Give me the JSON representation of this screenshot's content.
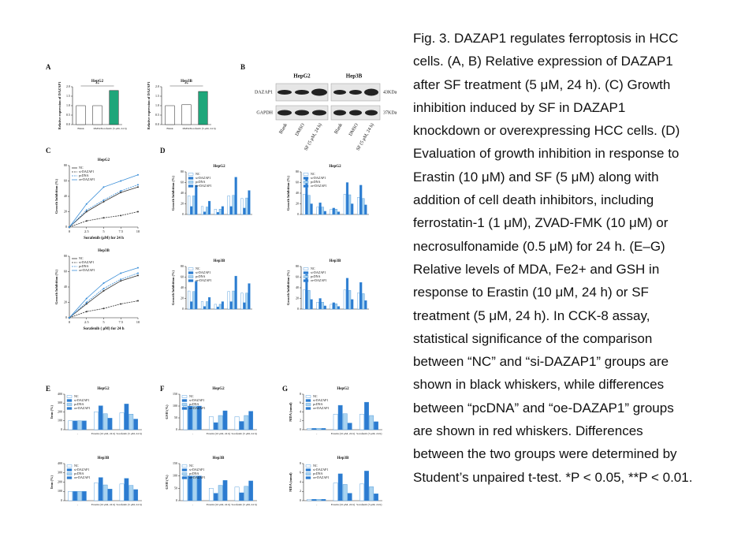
{
  "caption": {
    "lines": [
      "Fig. 3. DAZAP1 regulates ferroptosis in HCC",
      "cells. (A, B) Relative expression of DAZAP1",
      "after SF treatment (5 μM, 24 h). (C) Growth",
      "inhibition induced by SF in DAZAP1",
      "knockdown or overexpressing HCC cells. (D)",
      "Evaluation of growth inhibition in response to",
      "Erastin (10 μM) and SF (5 μM) along with",
      "addition of cell death inhibitors, including",
      "ferrostatin-1 (1 μM), ZVAD-FMK (10 μM) or",
      "necrosulfonamide (0.5 μM) for 24 h. (E–G)",
      "Relative levels of MDA, Fe2+ and GSH in",
      "response to Erastin (10 μM, 24 h) or SF",
      "treatment (5 μM, 24 h). In CCK-8 assay,",
      "statistical significance of the comparison",
      "between “NC” and “si-DAZAP1” groups are",
      "shown in black whiskers, while differences",
      "between “pcDNA” and “oe-DAZAP1” groups",
      "are shown in red whiskers. Differences",
      "between the two groups were determined by",
      "Student’s unpaired t-test. *P < 0.05, **P < 0.01."
    ]
  },
  "figure": {
    "panel_labels": [
      "A",
      "B",
      "C",
      "D",
      "E",
      "F",
      "G"
    ],
    "blot": {
      "cell_lines": [
        "HepG2",
        "Hep3B"
      ],
      "proteins": [
        "DAZAP1",
        "GAPDH"
      ],
      "sizes": [
        "43KDa",
        "37KDa"
      ],
      "lanes": [
        "Blank",
        "DMSO",
        "SF (5 μM, 24 h)"
      ]
    },
    "charts": [
      {
        "type": "bar",
        "title": "HepG2",
        "ylabel": "Relative expression of DAZAP1",
        "annotation": "**",
        "categories": [
          "Blank",
          "DMSO",
          "Sorafenib (5 μM, 24 h)"
        ],
        "values": [
          1.0,
          1.0,
          1.8
        ],
        "colors": [
          "#ffffff",
          "#ffffff",
          "#1fa67a"
        ],
        "ylim": [
          0,
          2
        ],
        "yticks": [
          {
            "value": 0,
            "label": "0.0"
          },
          {
            "value": 0.5,
            "label": "0.5"
          },
          {
            "value": 1,
            "label": "1.0"
          },
          {
            "value": 1.5,
            "label": "1.5"
          },
          {
            "value": 2,
            "label": "2.0"
          }
        ]
      },
      {
        "type": "bar",
        "title": "Hep3B",
        "ylabel": "Relative expression of DAZAP1",
        "annotation": "**",
        "categories": [
          "Blank",
          "DMSO",
          "Sorafenib (5 μM, 24 h)"
        ],
        "values": [
          1.0,
          1.05,
          1.75
        ],
        "colors": [
          "#ffffff",
          "#ffffff",
          "#1fa67a"
        ],
        "ylim": [
          0,
          2
        ],
        "yticks": [
          {
            "value": 0,
            "label": "0.0"
          },
          {
            "value": 0.5,
            "label": "0.5"
          },
          {
            "value": 1,
            "label": "1.0"
          },
          {
            "value": 1.5,
            "label": "1.5"
          },
          {
            "value": 2,
            "label": "2.0"
          }
        ]
      },
      {
        "type": "line",
        "title": "HepG2",
        "xlabel": "Sorafenib (μM) for 24 h",
        "ylabel": "Growth Inhibition (%)",
        "x": [
          0,
          2.5,
          5,
          7.5,
          10
        ],
        "xlim": [
          0,
          10
        ],
        "xticks": [
          0,
          2.5,
          5,
          7.5,
          10
        ],
        "ylim": [
          0,
          80
        ],
        "yticks": [
          0,
          20,
          40,
          60,
          80
        ],
        "series": [
          {
            "name": "NC",
            "color": "#333333",
            "dashed": false,
            "values": [
              0,
              20,
              33,
              45,
              52
            ]
          },
          {
            "name": "si-DAZAP1",
            "color": "#333333",
            "dashed": true,
            "values": [
              0,
              8,
              12,
              15,
              20
            ]
          },
          {
            "name": "pcDNA",
            "color": "#3c8fd8",
            "dashed": true,
            "values": [
              0,
              22,
              35,
              47,
              55
            ]
          },
          {
            "name": "oe-DAZAP1",
            "color": "#3c8fd8",
            "dashed": false,
            "values": [
              0,
              30,
              52,
              60,
              68
            ]
          }
        ]
      },
      {
        "type": "line",
        "title": "Hep3B",
        "xlabel": "Sorafenib ( μM) for 24 h",
        "ylabel": "Growth Inhibition (%)",
        "x": [
          0,
          2.5,
          5,
          7.5,
          10
        ],
        "xlim": [
          0,
          10
        ],
        "xticks": [
          0,
          2.5,
          5,
          7.5,
          10
        ],
        "ylim": [
          0,
          80
        ],
        "yticks": [
          0,
          20,
          40,
          60,
          80
        ],
        "series": [
          {
            "name": "NC",
            "color": "#333333",
            "dashed": false,
            "values": [
              0,
              18,
              35,
              48,
              55
            ]
          },
          {
            "name": "si-DAZAP1",
            "color": "#333333",
            "dashed": true,
            "values": [
              0,
              8,
              12,
              18,
              22
            ]
          },
          {
            "name": "pcDNA",
            "color": "#3c8fd8",
            "dashed": true,
            "values": [
              0,
              20,
              38,
              50,
              58
            ]
          },
          {
            "name": "oe-DAZAP1",
            "color": "#3c8fd8",
            "dashed": false,
            "values": [
              0,
              25,
              45,
              58,
              65
            ]
          }
        ]
      },
      {
        "type": "bar",
        "title": "HepG2",
        "ylabel": "Growth Inhibition (%)",
        "categories": [
          null,
          null,
          null,
          null,
          null
        ],
        "ylim": [
          0,
          80
        ],
        "yticks": [
          0,
          20,
          40,
          60,
          80
        ],
        "series": [
          {
            "name": "NC",
            "color": "#ffffff",
            "values": [
              35,
              15,
              10,
              35,
              30
            ]
          },
          {
            "name": "si-DAZAP1",
            "color": "#2c7bd0",
            "values": [
              15,
              5,
              4,
              15,
              12
            ]
          },
          {
            "name": "pcDNA",
            "color": "#a9d3f0",
            "values": [
              35,
              14,
              10,
              36,
              31
            ]
          },
          {
            "name": "oe-DAZAP1",
            "color": "#2c7bd0",
            "values": [
              55,
              25,
              15,
              70,
              45
            ]
          }
        ]
      },
      {
        "type": "bar",
        "title": "HepG2",
        "ylabel": "Growth Inhibition (%)",
        "categories": [
          null,
          null,
          null,
          null,
          null
        ],
        "ylim": [
          0,
          80
        ],
        "yticks": [
          0,
          20,
          40,
          60,
          80
        ],
        "series": [
          {
            "name": "NC",
            "color": "#ffffff",
            "values": [
              38,
              14,
              10,
              38,
              32
            ]
          },
          {
            "name": "si-DAZAP1",
            "color": "#2c7bd0",
            "values": [
              70,
              22,
              12,
              60,
              55
            ]
          },
          {
            "name": "pcDNA",
            "color": "#a9d3f0",
            "values": [
              36,
              14,
              10,
              37,
              30
            ]
          },
          {
            "name": "oe-DAZAP1",
            "color": "#2c7bd0",
            "values": [
              20,
              6,
              5,
              20,
              18
            ]
          }
        ]
      },
      {
        "type": "bar",
        "title": "Hep3B",
        "ylabel": "Growth Inhibition (%)",
        "categories": [
          null,
          null,
          null,
          null,
          null
        ],
        "ylim": [
          0,
          80
        ],
        "yticks": [
          0,
          20,
          40,
          60,
          80
        ],
        "series": [
          {
            "name": "NC",
            "color": "#ffffff",
            "values": [
              34,
              14,
              9,
              33,
              30
            ]
          },
          {
            "name": "si-DAZAP1",
            "color": "#2c7bd0",
            "values": [
              14,
              5,
              4,
              14,
              12
            ]
          },
          {
            "name": "pcDNA",
            "color": "#a9d3f0",
            "values": [
              33,
              14,
              9,
              34,
              30
            ]
          },
          {
            "name": "oe-DAZAP1",
            "color": "#2c7bd0",
            "values": [
              52,
              22,
              14,
              62,
              48
            ]
          }
        ]
      },
      {
        "type": "bar",
        "title": "Hep3B",
        "ylabel": "Growth Inhibition (%)",
        "categories": [
          null,
          null,
          null,
          null,
          null
        ],
        "ylim": [
          0,
          80
        ],
        "yticks": [
          0,
          20,
          40,
          60,
          80
        ],
        "series": [
          {
            "name": "NC",
            "color": "#ffffff",
            "values": [
              36,
              13,
              9,
              36,
              30
            ]
          },
          {
            "name": "si-DAZAP1",
            "color": "#2c7bd0",
            "values": [
              65,
              20,
              12,
              58,
              50
            ]
          },
          {
            "name": "pcDNA",
            "color": "#a9d3f0",
            "values": [
              35,
              13,
              10,
              35,
              29
            ]
          },
          {
            "name": "oe-DAZAP1",
            "color": "#2c7bd0",
            "values": [
              18,
              6,
              5,
              18,
              16
            ]
          }
        ]
      },
      {
        "type": "bar",
        "title": "HepG2",
        "ylabel": "Iron (%)",
        "categories": [
          "-",
          "Erastin (10 μM, 24 h)",
          "Sorafenib (5 μM, 24 h)"
        ],
        "ylim": [
          0,
          400
        ],
        "yticks": [
          0,
          100,
          200,
          300,
          400
        ],
        "series": [
          {
            "name": "NC",
            "color": "#ffffff",
            "values": [
              100,
              200,
              190
            ]
          },
          {
            "name": "si-DAZAP1",
            "color": "#2c7bd0",
            "values": [
              100,
              270,
              290
            ]
          },
          {
            "name": "pcDNA",
            "color": "#a9d3f0",
            "values": [
              100,
              180,
              175
            ]
          },
          {
            "name": "oe-DAZAP1",
            "color": "#2c7bd0",
            "values": [
              100,
              130,
              120
            ]
          }
        ]
      },
      {
        "type": "bar",
        "title": "Hep3B",
        "ylabel": "Iron (%)",
        "categories": [
          "-",
          "Erastin (10 μM, 24 h)",
          "Sorafenib (5 μM, 24 h)"
        ],
        "ylim": [
          0,
          400
        ],
        "yticks": [
          0,
          100,
          200,
          300,
          400
        ],
        "series": [
          {
            "name": "NC",
            "color": "#ffffff",
            "values": [
              100,
              190,
              180
            ]
          },
          {
            "name": "si-DAZAP1",
            "color": "#2c7bd0",
            "values": [
              100,
              250,
              240
            ]
          },
          {
            "name": "pcDNA",
            "color": "#a9d3f0",
            "values": [
              100,
              170,
              165
            ]
          },
          {
            "name": "oe-DAZAP1",
            "color": "#2c7bd0",
            "values": [
              100,
              125,
              120
            ]
          }
        ]
      },
      {
        "type": "bar",
        "title": "HepG2",
        "ylabel": "GSH (%)",
        "categories": [
          "-",
          "Erastin (10 μM, 24 h)",
          "Sorafenib (5 μM, 24 h)"
        ],
        "ylim": [
          0,
          150
        ],
        "yticks": [
          0,
          50,
          100,
          150
        ],
        "series": [
          {
            "name": "NC",
            "color": "#ffffff",
            "values": [
              100,
              55,
              55
            ]
          },
          {
            "name": "si-DAZAP1",
            "color": "#2c7bd0",
            "values": [
              100,
              30,
              35
            ]
          },
          {
            "name": "pcDNA",
            "color": "#a9d3f0",
            "values": [
              100,
              60,
              60
            ]
          },
          {
            "name": "oe-DAZAP1",
            "color": "#2c7bd0",
            "values": [
              100,
              80,
              78
            ]
          }
        ]
      },
      {
        "type": "bar",
        "title": "Hep3B",
        "ylabel": "GSH (%)",
        "categories": [
          "-",
          "Erastin (10 μM, 24 h)",
          "Sorafenib (5 μM, 24 h)"
        ],
        "ylim": [
          0,
          150
        ],
        "yticks": [
          0,
          50,
          100,
          150
        ],
        "series": [
          {
            "name": "NC",
            "color": "#ffffff",
            "values": [
              100,
              50,
              55
            ]
          },
          {
            "name": "si-DAZAP1",
            "color": "#2c7bd0",
            "values": [
              100,
              30,
              32
            ]
          },
          {
            "name": "pcDNA",
            "color": "#a9d3f0",
            "values": [
              100,
              62,
              58
            ]
          },
          {
            "name": "oe-DAZAP1",
            "color": "#2c7bd0",
            "values": [
              100,
              82,
              80
            ]
          }
        ]
      },
      {
        "type": "bar",
        "title": "HepG2",
        "ylabel": "MDA (nmol)",
        "categories": [
          "-",
          "Erastin (10 μM, 24 h)",
          "Sorafenib (5 μM, 24 h)"
        ],
        "ylim": [
          0,
          8
        ],
        "yticks": [
          0,
          2,
          4,
          6,
          8
        ],
        "series": [
          {
            "name": "NC",
            "color": "#ffffff",
            "values": [
              0.3,
              3.5,
              3.5
            ]
          },
          {
            "name": "si-DAZAP1",
            "color": "#2c7bd0",
            "values": [
              0.3,
              5.5,
              6.2
            ]
          },
          {
            "name": "pcDNA",
            "color": "#a9d3f0",
            "values": [
              0.3,
              3.6,
              3.2
            ]
          },
          {
            "name": "oe-DAZAP1",
            "color": "#2c7bd0",
            "values": [
              0.3,
              1.5,
              1.8
            ]
          }
        ]
      },
      {
        "type": "bar",
        "title": "Hep3B",
        "ylabel": "MDA (nmol)",
        "categories": [
          "-",
          "Erastin (10 μM, 24 h)",
          "Sorafenib (5 μM, 24 h)"
        ],
        "ylim": [
          0,
          8
        ],
        "yticks": [
          0,
          2,
          4,
          6,
          8
        ],
        "series": [
          {
            "name": "NC",
            "color": "#ffffff",
            "values": [
              0.3,
              3.8,
              3.6
            ]
          },
          {
            "name": "si-DAZAP1",
            "color": "#2c7bd0",
            "values": [
              0.3,
              5.8,
              6.4
            ]
          },
          {
            "name": "pcDNA",
            "color": "#a9d3f0",
            "values": [
              0.3,
              3.5,
              3.0
            ]
          },
          {
            "name": "oe-DAZAP1",
            "color": "#2c7bd0",
            "values": [
              0.3,
              1.6,
              1.5
            ]
          }
        ]
      }
    ]
  }
}
